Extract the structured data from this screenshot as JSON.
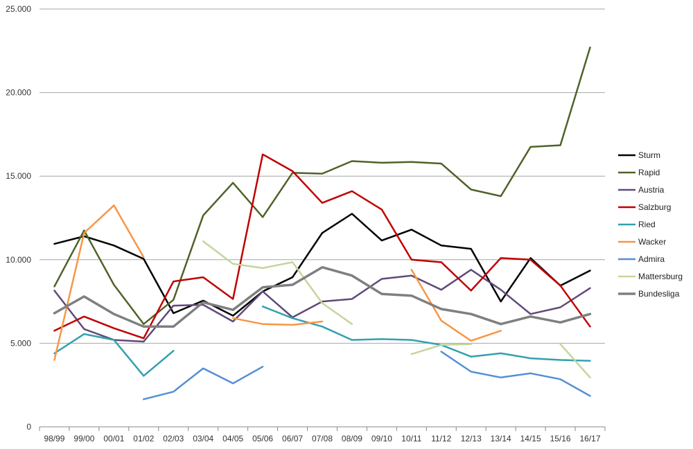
{
  "chart_data": {
    "type": "line",
    "categories": [
      "98/99",
      "99/00",
      "00/01",
      "01/02",
      "02/03",
      "03/04",
      "04/05",
      "05/06",
      "06/07",
      "07/08",
      "08/09",
      "09/10",
      "10/11",
      "11/12",
      "12/13",
      "13/14",
      "14/15",
      "15/16",
      "16/17"
    ],
    "ylim": [
      0,
      25000
    ],
    "yticks": [
      0,
      5000,
      10000,
      15000,
      20000,
      25000
    ],
    "ytick_labels": [
      "0",
      "5.000",
      "10.000",
      "15.000",
      "20.000",
      "25.000"
    ],
    "grid": true,
    "legend_position": "right",
    "series": [
      {
        "name": "Sturm",
        "color": "#000000",
        "width": 2.5,
        "values": [
          10950,
          11400,
          10850,
          10050,
          6800,
          7550,
          6650,
          8100,
          8950,
          11600,
          12750,
          11150,
          11800,
          10850,
          10650,
          7500,
          10100,
          8450,
          9350
        ]
      },
      {
        "name": "Rapid",
        "color": "#4f6228",
        "width": 2.5,
        "values": [
          8400,
          11750,
          8500,
          6150,
          7600,
          12650,
          14600,
          12550,
          15200,
          15150,
          15900,
          15800,
          15850,
          15750,
          14200,
          13800,
          16750,
          16850,
          22700
        ]
      },
      {
        "name": "Austria",
        "color": "#60497a",
        "width": 2.5,
        "values": [
          8150,
          5850,
          5200,
          5100,
          7250,
          7300,
          6300,
          8100,
          6550,
          7500,
          7650,
          8850,
          9050,
          8200,
          9400,
          8200,
          6750,
          7150,
          8300
        ]
      },
      {
        "name": "Salzburg",
        "color": "#c00000",
        "width": 2.5,
        "values": [
          5750,
          6600,
          5900,
          5300,
          8700,
          8950,
          7650,
          16300,
          15300,
          13400,
          14100,
          13000,
          10000,
          9850,
          8150,
          10100,
          10000,
          8450,
          6000
        ]
      },
      {
        "name": "Ried",
        "color": "#31a0b0",
        "width": 2.5,
        "values": [
          4400,
          5550,
          5200,
          3050,
          4550,
          null,
          null,
          7200,
          6500,
          6000,
          5200,
          5250,
          5200,
          4900,
          4200,
          4400,
          4100,
          4000,
          3950
        ]
      },
      {
        "name": "Wacker",
        "color": "#f79646",
        "width": 2.5,
        "values": [
          4000,
          11600,
          13250,
          10150,
          null,
          null,
          6500,
          6150,
          6100,
          6300,
          null,
          null,
          9400,
          6350,
          5150,
          5750,
          null,
          null,
          null
        ]
      },
      {
        "name": "Admira",
        "color": "#558ed5",
        "width": 2.5,
        "values": [
          null,
          null,
          null,
          1650,
          2100,
          3500,
          2600,
          3600,
          null,
          null,
          null,
          null,
          null,
          4500,
          3300,
          2950,
          3200,
          2850,
          1850
        ]
      },
      {
        "name": "Mattersburg",
        "color": "#c3d69b",
        "width": 2.5,
        "values": [
          null,
          null,
          null,
          null,
          null,
          11100,
          9750,
          9500,
          9850,
          7400,
          6150,
          null,
          4350,
          4900,
          4950,
          null,
          null,
          4950,
          2950
        ]
      },
      {
        "name": "Bundesliga",
        "color": "#7f7f7f",
        "width": 3.5,
        "values": [
          6800,
          7800,
          6750,
          6000,
          6000,
          7450,
          7000,
          8350,
          8500,
          9550,
          9050,
          7950,
          7850,
          7050,
          6750,
          6150,
          6600,
          6250,
          6750
        ]
      }
    ]
  }
}
